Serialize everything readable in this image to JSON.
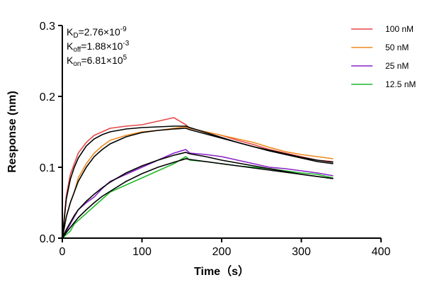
{
  "chart_data": {
    "type": "line",
    "title": "",
    "xlabel": "Time（s）",
    "ylabel": "Response (nm)",
    "xlim": [
      0,
      400
    ],
    "ylim": [
      0,
      0.3
    ],
    "xticks": [
      0,
      100,
      200,
      300,
      400
    ],
    "yticks": [
      0.0,
      0.1,
      0.2,
      0.3
    ],
    "xtick_labels": [
      "0",
      "100",
      "200",
      "300",
      "400"
    ],
    "ytick_labels": [
      "0.0",
      "0.1",
      "0.2",
      "0.3"
    ],
    "legend_position": "top-right",
    "kinetics": {
      "kd": {
        "label": "K",
        "sub": "D",
        "value": "=2.76×10",
        "exp": "-9"
      },
      "koff": {
        "label": "K",
        "sub": "off",
        "value": "=1.88×10",
        "exp": "-3"
      },
      "kon": {
        "label": "K",
        "sub": "on",
        "value": "=6.81×10",
        "exp": "5"
      }
    },
    "series": [
      {
        "name": "100 nM",
        "color": "#e8474a",
        "x": [
          0,
          5,
          10,
          15,
          20,
          30,
          40,
          50,
          60,
          80,
          100,
          120,
          140,
          155,
          160,
          180,
          200,
          220,
          240,
          260,
          280,
          300,
          320,
          340
        ],
        "y": [
          0.0,
          0.06,
          0.09,
          0.105,
          0.12,
          0.135,
          0.145,
          0.15,
          0.155,
          0.158,
          0.16,
          0.165,
          0.17,
          0.16,
          0.155,
          0.15,
          0.145,
          0.138,
          0.132,
          0.125,
          0.12,
          0.115,
          0.11,
          0.108
        ]
      },
      {
        "name": "50 nM",
        "color": "#ee8a1f",
        "x": [
          0,
          5,
          10,
          15,
          20,
          30,
          40,
          50,
          60,
          80,
          100,
          120,
          140,
          155,
          160,
          180,
          200,
          220,
          240,
          260,
          280,
          300,
          320,
          340
        ],
        "y": [
          0.0,
          0.03,
          0.05,
          0.065,
          0.085,
          0.105,
          0.12,
          0.13,
          0.138,
          0.145,
          0.15,
          0.152,
          0.155,
          0.157,
          0.155,
          0.15,
          0.145,
          0.14,
          0.135,
          0.128,
          0.122,
          0.118,
          0.115,
          0.112
        ]
      },
      {
        "name": "25 nM",
        "color": "#8a22c8",
        "x": [
          0,
          5,
          10,
          15,
          20,
          30,
          40,
          50,
          60,
          80,
          100,
          120,
          140,
          155,
          160,
          180,
          200,
          220,
          240,
          260,
          280,
          300,
          320,
          340
        ],
        "y": [
          0.0,
          0.01,
          0.02,
          0.03,
          0.04,
          0.05,
          0.058,
          0.07,
          0.08,
          0.09,
          0.1,
          0.11,
          0.12,
          0.125,
          0.12,
          0.118,
          0.115,
          0.11,
          0.105,
          0.1,
          0.098,
          0.095,
          0.092,
          0.088
        ]
      },
      {
        "name": "12.5 nM",
        "color": "#1fb82a",
        "x": [
          0,
          5,
          10,
          15,
          20,
          30,
          40,
          50,
          60,
          80,
          100,
          120,
          140,
          155,
          160,
          180,
          200,
          220,
          240,
          260,
          280,
          300,
          320,
          340
        ],
        "y": [
          0.0,
          0.005,
          0.01,
          0.02,
          0.025,
          0.035,
          0.045,
          0.055,
          0.065,
          0.075,
          0.085,
          0.095,
          0.105,
          0.115,
          0.11,
          0.108,
          0.105,
          0.102,
          0.1,
          0.098,
          0.095,
          0.092,
          0.09,
          0.085
        ]
      }
    ],
    "fits": [
      {
        "x": [
          0,
          5,
          10,
          15,
          20,
          30,
          40,
          50,
          60,
          80,
          100,
          120,
          140,
          155,
          160,
          180,
          200,
          220,
          240,
          260,
          280,
          300,
          320,
          340
        ],
        "y": [
          0.0,
          0.055,
          0.083,
          0.1,
          0.113,
          0.13,
          0.14,
          0.146,
          0.15,
          0.154,
          0.156,
          0.157,
          0.158,
          0.158,
          0.156,
          0.149,
          0.142,
          0.135,
          0.129,
          0.123,
          0.118,
          0.113,
          0.108,
          0.105
        ]
      },
      {
        "x": [
          0,
          5,
          10,
          15,
          20,
          30,
          40,
          50,
          60,
          80,
          100,
          120,
          140,
          155,
          160,
          180,
          200,
          220,
          240,
          260,
          280,
          300,
          320,
          340
        ],
        "y": [
          0.0,
          0.03,
          0.05,
          0.065,
          0.08,
          0.1,
          0.115,
          0.125,
          0.133,
          0.143,
          0.149,
          0.152,
          0.154,
          0.155,
          0.153,
          0.147,
          0.141,
          0.135,
          0.129,
          0.124,
          0.119,
          0.114,
          0.11,
          0.107
        ]
      },
      {
        "x": [
          0,
          5,
          10,
          15,
          20,
          30,
          40,
          50,
          60,
          80,
          100,
          120,
          140,
          155,
          160,
          180,
          200,
          220,
          240,
          260,
          280,
          300,
          320,
          340
        ],
        "y": [
          0.0,
          0.012,
          0.022,
          0.032,
          0.04,
          0.052,
          0.062,
          0.071,
          0.079,
          0.092,
          0.102,
          0.11,
          0.117,
          0.121,
          0.119,
          0.115,
          0.11,
          0.106,
          0.102,
          0.098,
          0.094,
          0.09,
          0.087,
          0.084
        ]
      },
      {
        "x": [
          0,
          5,
          10,
          15,
          20,
          30,
          40,
          50,
          60,
          80,
          100,
          120,
          140,
          155,
          160,
          180,
          200,
          220,
          240,
          260,
          280,
          300,
          320,
          340
        ],
        "y": [
          0.0,
          0.008,
          0.015,
          0.022,
          0.029,
          0.04,
          0.05,
          0.059,
          0.066,
          0.08,
          0.091,
          0.1,
          0.107,
          0.112,
          0.111,
          0.108,
          0.105,
          0.102,
          0.099,
          0.096,
          0.093,
          0.09,
          0.087,
          0.084
        ]
      }
    ]
  }
}
